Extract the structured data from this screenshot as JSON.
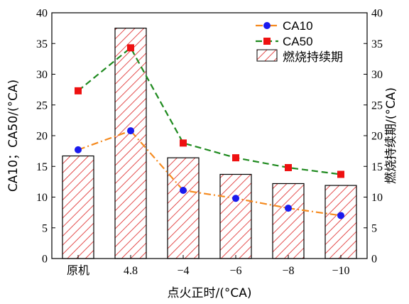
{
  "chart_data": {
    "type": "bar",
    "categories": [
      "原机",
      "4.8",
      "−4",
      "−6",
      "−8",
      "−10"
    ],
    "xlabel": "点火正时/(°CA)",
    "ylabel_left": "CA10；CA50/(°CA)",
    "ylabel_right": "燃烧持续期/(°CA)",
    "ylim_left": [
      0,
      40
    ],
    "ylim_right": [
      0,
      40
    ],
    "yticks": [
      "0",
      "5",
      "10",
      "15",
      "20",
      "25",
      "30",
      "35",
      "40"
    ],
    "legend_position": "top-right",
    "grid": false,
    "series": [
      {
        "name": "CA10",
        "type": "line",
        "axis": "left",
        "marker": "circle",
        "line_style": "dash-dot",
        "line_color": "#f58a1f",
        "marker_color": "#1a1aee",
        "values": [
          17.7,
          20.8,
          11.1,
          9.8,
          8.2,
          7.0
        ]
      },
      {
        "name": "CA50",
        "type": "line",
        "axis": "left",
        "marker": "square",
        "line_style": "dashed",
        "line_color": "#1f8a1f",
        "marker_color": "#ee1111",
        "values": [
          27.3,
          34.3,
          18.8,
          16.4,
          14.8,
          13.7
        ]
      },
      {
        "name": "燃烧持续期",
        "type": "bar",
        "axis": "right",
        "pattern": "diagonal-hatch",
        "hatch_color": "#dd2222",
        "values": [
          16.7,
          37.5,
          16.4,
          13.7,
          12.2,
          11.9
        ]
      }
    ]
  }
}
